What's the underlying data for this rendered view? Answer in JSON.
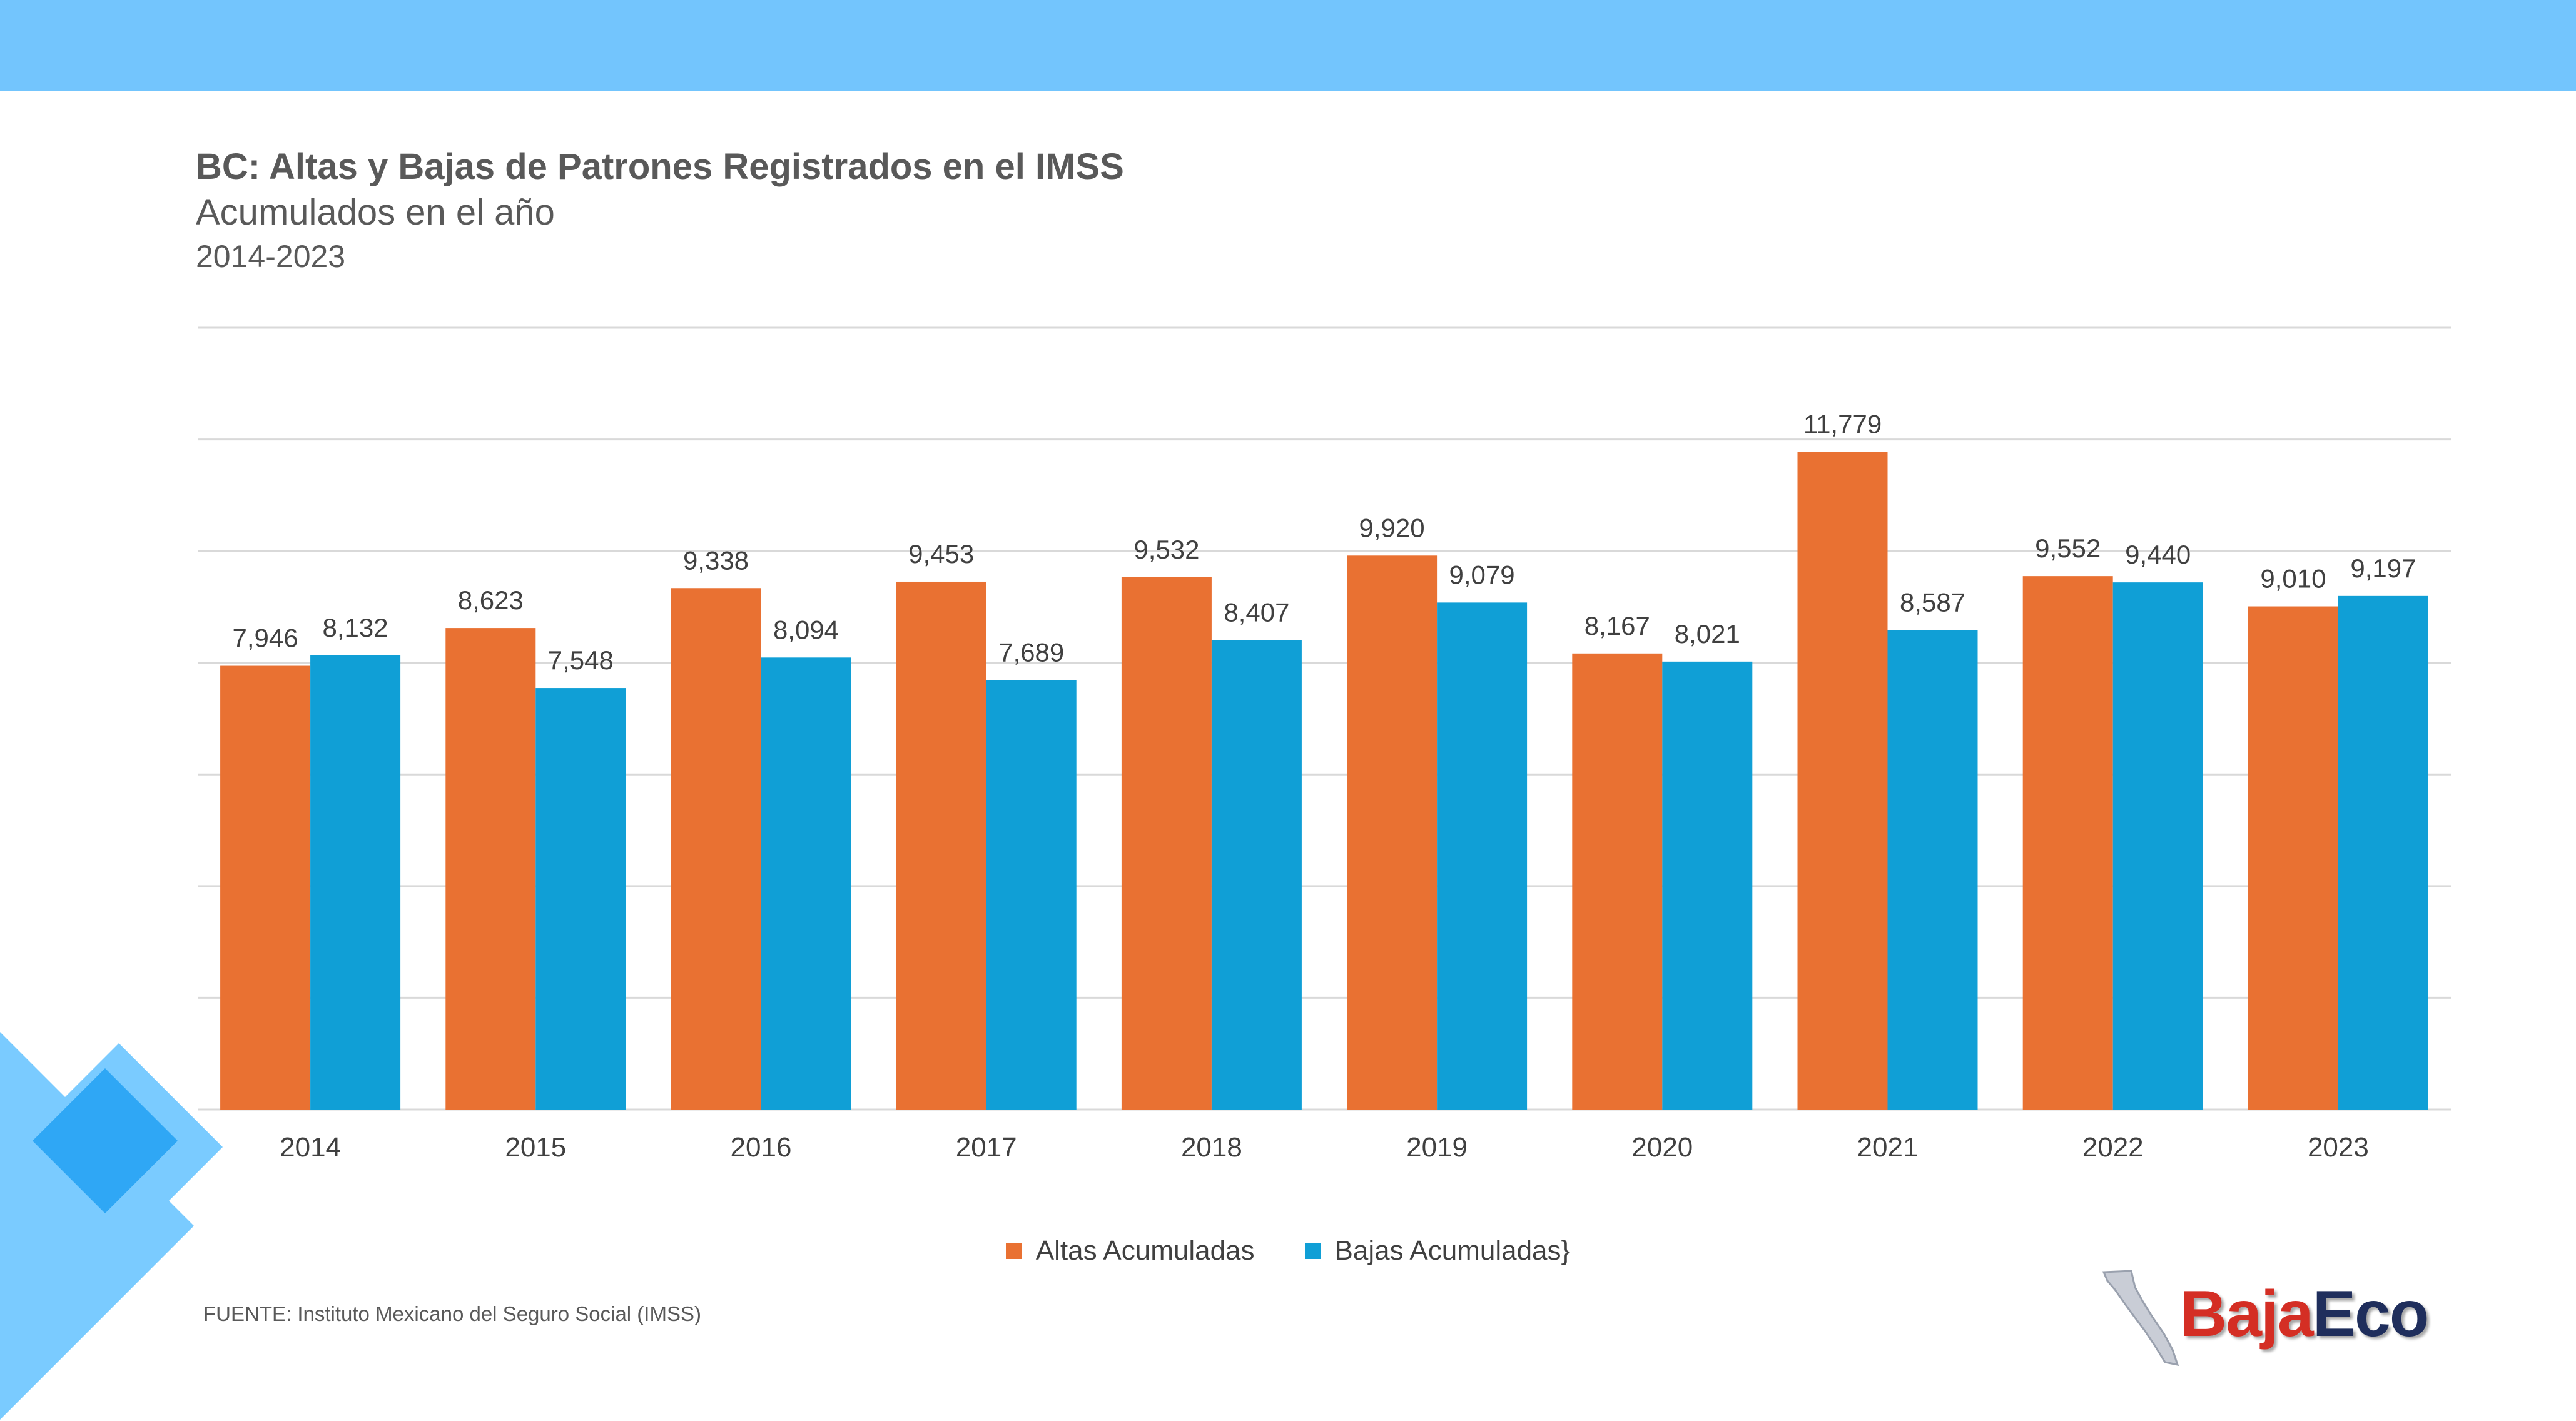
{
  "colors": {
    "band": "#73C5FD",
    "altas": "#E97132",
    "bajas": "#109FD6",
    "grid": "#D9D9D9",
    "deco_light": "#7ACBFF",
    "deco_dark": "#2FA7F5",
    "logo_red": "#D42E24",
    "logo_navy": "#1F2E5C"
  },
  "header": {
    "title": "BC: Altas y Bajas de Patrones Registrados en el IMSS",
    "subtitle": "Acumulados en el año",
    "period": "2014-2023"
  },
  "chart_data": {
    "type": "bar",
    "categories": [
      "2014",
      "2015",
      "2016",
      "2017",
      "2018",
      "2019",
      "2020",
      "2021",
      "2022",
      "2023"
    ],
    "series": [
      {
        "name": "Altas Acumuladas",
        "values": [
          7946,
          8623,
          9338,
          9453,
          9532,
          9920,
          8167,
          11779,
          9552,
          9010
        ]
      },
      {
        "name": "Bajas Acumuladas}",
        "values": [
          8132,
          7548,
          8094,
          7689,
          8407,
          9079,
          8021,
          8587,
          9440,
          9197
        ]
      }
    ],
    "value_labels": [
      [
        "7,946",
        "8,623",
        "9,338",
        "9,453",
        "9,532",
        "9,920",
        "8,167",
        "11,779",
        "9,552",
        "9,010"
      ],
      [
        "8,132",
        "7,548",
        "8,094",
        "7,689",
        "8,407",
        "9,079",
        "8,021",
        "8,587",
        "9,440",
        "9,197"
      ]
    ],
    "ylim": [
      0,
      14000
    ],
    "y_gridline_step": 2000,
    "y_tick_labels_shown": false,
    "grid": true,
    "legend_position": "bottom"
  },
  "footer": {
    "source": "FUENTE: Instituto Mexicano del Seguro Social (IMSS)",
    "logo_part1": "Baja",
    "logo_part2": "Eco",
    "logo_map_icon": "baja-california-map-icon"
  }
}
